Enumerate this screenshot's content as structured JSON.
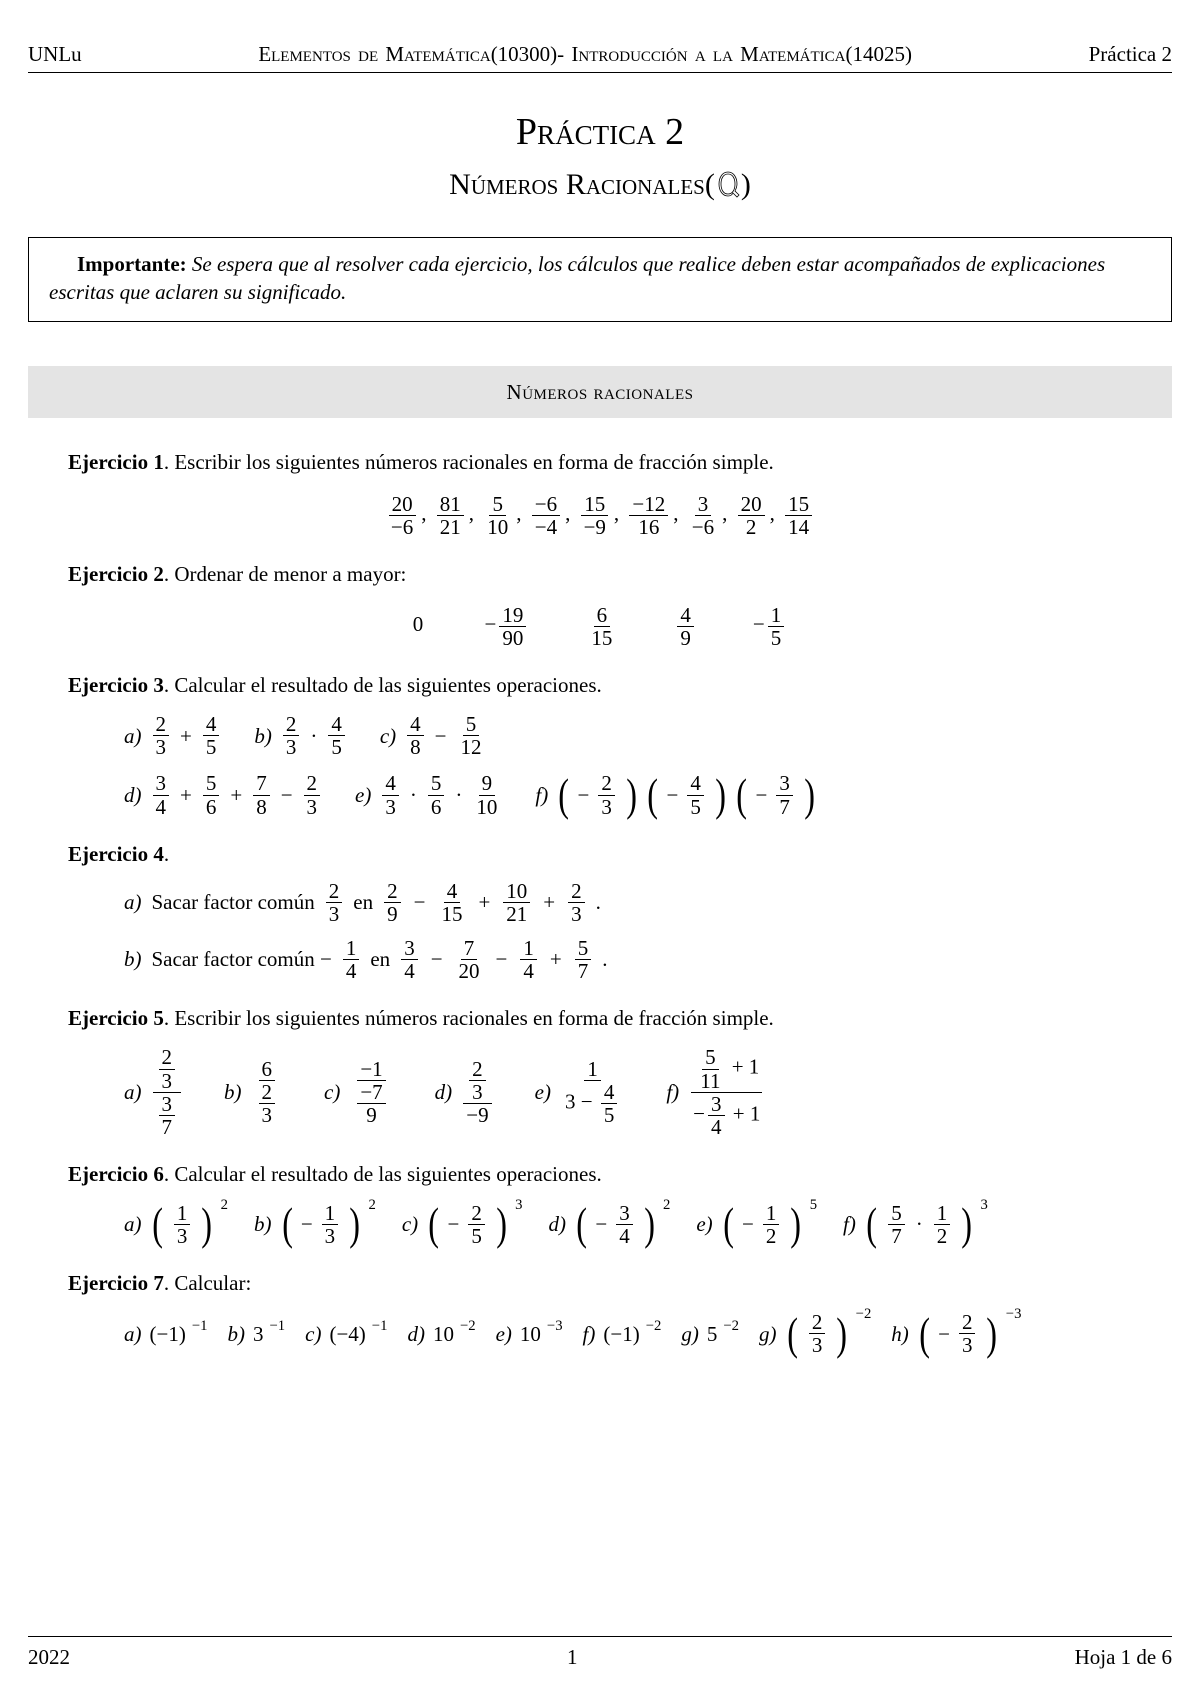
{
  "header": {
    "left": "UNLu",
    "center": "Elementos de Matemática(10300)- Introducción a la Matemática(14025)",
    "right": "Práctica 2"
  },
  "title": "Práctica 2",
  "subtitle_pre": "Números Racionales(",
  "subtitle_post": ")",
  "note": {
    "bold": "Importante:",
    "text": " Se espera que al resolver cada ejercicio, los cálculos que realice deben estar acompañados de explicaciones escritas que aclaren su significado."
  },
  "section1": "Números racionales",
  "ej1": {
    "label": "Ejercicio 1",
    "text": ".  Escribir los siguientes números racionales en forma de fracción simple.",
    "fracs": [
      {
        "n": "20",
        "d": "−6"
      },
      {
        "n": "81",
        "d": "21"
      },
      {
        "n": "5",
        "d": "10"
      },
      {
        "n": "−6",
        "d": "−4"
      },
      {
        "n": "15",
        "d": "−9"
      },
      {
        "n": "−12",
        "d": "16"
      },
      {
        "n": "3",
        "d": "−6"
      },
      {
        "n": "20",
        "d": "2"
      },
      {
        "n": "15",
        "d": "14"
      }
    ]
  },
  "ej2": {
    "label": "Ejercicio 2",
    "text": ".  Ordenar de menor a mayor:",
    "items": [
      "0"
    ],
    "fracs": [
      {
        "pre": "−",
        "n": "19",
        "d": "90"
      },
      {
        "pre": "",
        "n": "6",
        "d": "15"
      },
      {
        "pre": "",
        "n": "4",
        "d": "9"
      },
      {
        "pre": "−",
        "n": "1",
        "d": "5"
      }
    ]
  },
  "ej3": {
    "label": "Ejercicio 3",
    "text": ".  Calcular el resultado de las siguientes operaciones.",
    "row1": {
      "a": {
        "lbl": "a)",
        "parts": [
          {
            "n": "2",
            "d": "3"
          },
          "+",
          {
            "n": "4",
            "d": "5"
          }
        ]
      },
      "b": {
        "lbl": "b)",
        "parts": [
          {
            "n": "2",
            "d": "3"
          },
          "·",
          {
            "n": "4",
            "d": "5"
          }
        ]
      },
      "c": {
        "lbl": "c)",
        "parts": [
          {
            "n": "4",
            "d": "8"
          },
          "−",
          {
            "n": "5",
            "d": "12"
          }
        ]
      }
    },
    "row2": {
      "d": {
        "lbl": "d)",
        "parts": [
          {
            "n": "3",
            "d": "4"
          },
          "+",
          {
            "n": "5",
            "d": "6"
          },
          "+",
          {
            "n": "7",
            "d": "8"
          },
          "−",
          {
            "n": "2",
            "d": "3"
          }
        ]
      },
      "e": {
        "lbl": "e)",
        "parts": [
          {
            "n": "4",
            "d": "3"
          },
          "·",
          {
            "n": "5",
            "d": "6"
          },
          "·",
          {
            "n": "9",
            "d": "10"
          }
        ]
      },
      "f": {
        "lbl": "f)",
        "g1": {
          "pre": "−",
          "n": "2",
          "d": "3"
        },
        "g2": {
          "pre": "−",
          "n": "4",
          "d": "5"
        },
        "g3": {
          "pre": "−",
          "n": "3",
          "d": "7"
        }
      }
    }
  },
  "ej4": {
    "label": "Ejercicio 4",
    "dot": ".",
    "a": {
      "lbl": "a)",
      "pre": "Sacar factor común ",
      "f": {
        "n": "2",
        "d": "3"
      },
      "mid": " en ",
      "parts": [
        {
          "n": "2",
          "d": "9"
        },
        "−",
        {
          "n": "4",
          "d": "15"
        },
        "+",
        {
          "n": "10",
          "d": "21"
        },
        "+",
        {
          "n": "2",
          "d": "3"
        }
      ],
      "post": "."
    },
    "b": {
      "lbl": "b)",
      "pre": "Sacar factor común −",
      "f": {
        "n": "1",
        "d": "4"
      },
      "mid": " en ",
      "parts": [
        {
          "n": "3",
          "d": "4"
        },
        "−",
        {
          "n": "7",
          "d": "20"
        },
        "−",
        {
          "n": "1",
          "d": "4"
        },
        "+",
        {
          "n": "5",
          "d": "7"
        }
      ],
      "post": "."
    }
  },
  "ej5": {
    "label": "Ejercicio 5",
    "text": ".  Escribir los siguientes números racionales en forma de fracción simple.",
    "a": {
      "lbl": "a)",
      "nn": "2",
      "nd": "3",
      "dn": "3",
      "dd": "7"
    },
    "b": {
      "lbl": "b)",
      "num": "6",
      "dn": "2",
      "dd": "3"
    },
    "c": {
      "lbl": "c)",
      "num": "−1",
      "dn": "−7",
      "dd": "9"
    },
    "d": {
      "lbl": "d)",
      "nn": "2",
      "nd": "3",
      "den": "−9"
    },
    "e": {
      "lbl": "e)",
      "num": "1",
      "pre": "3 −",
      "dn": "4",
      "dd": "5"
    },
    "f": {
      "lbl": "f)",
      "t_n": "5",
      "t_d": "11",
      "t_plus": "+ 1",
      "b_pre": "−",
      "b_n": "3",
      "b_d": "4",
      "b_plus": "+ 1"
    }
  },
  "ej6": {
    "label": "Ejercicio 6",
    "text": ".  Calcular el resultado de las siguientes operaciones.",
    "a": {
      "lbl": "a)",
      "n": "1",
      "d": "3",
      "e": "2",
      "pre": ""
    },
    "b": {
      "lbl": "b)",
      "n": "1",
      "d": "3",
      "e": "2",
      "pre": "−"
    },
    "c": {
      "lbl": "c)",
      "n": "2",
      "d": "5",
      "e": "3",
      "pre": "−"
    },
    "d": {
      "lbl": "d)",
      "n": "3",
      "d": "4",
      "e": "2",
      "pre": "−"
    },
    "e": {
      "lbl": "e)",
      "n": "1",
      "d": "2",
      "e": "5",
      "pre": "−"
    },
    "f": {
      "lbl": "f)",
      "n1": "5",
      "d1": "7",
      "n2": "1",
      "d2": "2",
      "e": "3"
    }
  },
  "ej7": {
    "label": "Ejercicio 7",
    "text": ".  Calcular:",
    "a": {
      "lbl": "a)",
      "base": "(−1)",
      "e": "−1"
    },
    "b": {
      "lbl": "b)",
      "base": "3",
      "e": "−1"
    },
    "c": {
      "lbl": "c)",
      "base": "(−4)",
      "e": "−1"
    },
    "d": {
      "lbl": "d)",
      "base": "10",
      "e": "−2"
    },
    "e": {
      "lbl": "e)",
      "base": "10",
      "e": "−3"
    },
    "f": {
      "lbl": "f)",
      "base": "(−1)",
      "e": "−2"
    },
    "g": {
      "lbl": "g)",
      "base": "5",
      "e": "−2"
    },
    "g2": {
      "lbl": "g)",
      "n": "2",
      "d": "3",
      "e": "−2",
      "pre": ""
    },
    "h": {
      "lbl": "h)",
      "n": "2",
      "d": "3",
      "e": "−3",
      "pre": "−"
    }
  },
  "footer": {
    "year": "2022",
    "page": "1",
    "sheet": "Hoja 1 de 6"
  }
}
